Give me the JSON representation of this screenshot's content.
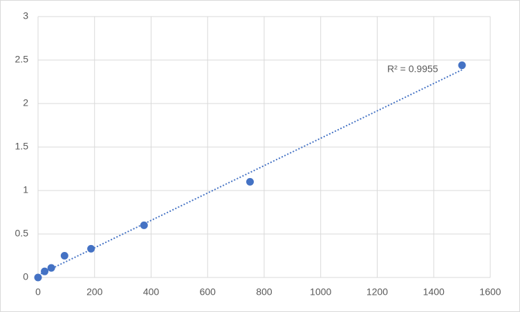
{
  "chart_data": {
    "type": "scatter",
    "x": [
      0,
      23.4,
      46.9,
      93.75,
      187.5,
      375,
      750,
      1500
    ],
    "values": [
      0,
      0.07,
      0.11,
      0.25,
      0.33,
      0.6,
      1.1,
      2.44
    ],
    "color": "#4472c4",
    "trendline": "linear",
    "annotation": "R² = 0.9955",
    "xlim": [
      0,
      1600
    ],
    "xticks": [
      0,
      200,
      400,
      600,
      800,
      1000,
      1200,
      1400,
      1600
    ],
    "ylim": [
      0,
      3
    ],
    "yticks": [
      0,
      0.5,
      1,
      1.5,
      2,
      2.5,
      3
    ],
    "grid": true
  }
}
